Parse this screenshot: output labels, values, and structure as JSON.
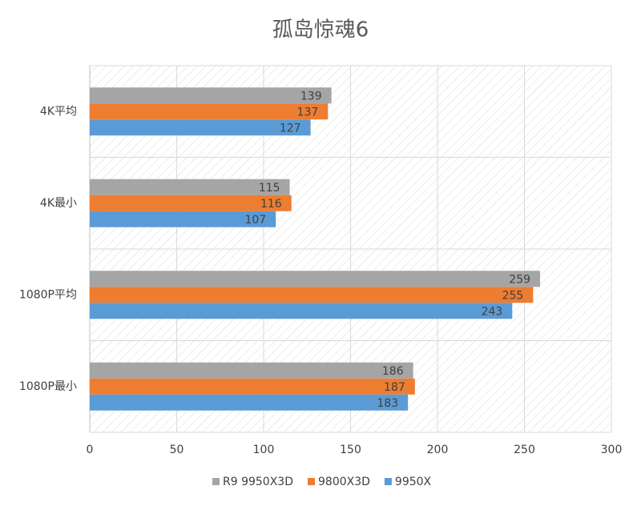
{
  "chart_data": {
    "type": "hbar",
    "title": "孤岛惊魂6",
    "categories": [
      "4K平均",
      "4K最小",
      "1080P平均",
      "1080P最小"
    ],
    "series": [
      {
        "name": "R9 9950X3D",
        "color": "#a5a5a5",
        "values": [
          139,
          115,
          259,
          186
        ]
      },
      {
        "name": "9800X3D",
        "color": "#ed7d31",
        "values": [
          137,
          116,
          255,
          187
        ]
      },
      {
        "name": "9950X",
        "color": "#5b9bd5",
        "values": [
          127,
          107,
          243,
          183
        ]
      }
    ],
    "xlim": [
      0,
      300
    ],
    "xticks": [
      0,
      50,
      100,
      150,
      200,
      250,
      300
    ],
    "grid": true,
    "legend": "bottom"
  }
}
